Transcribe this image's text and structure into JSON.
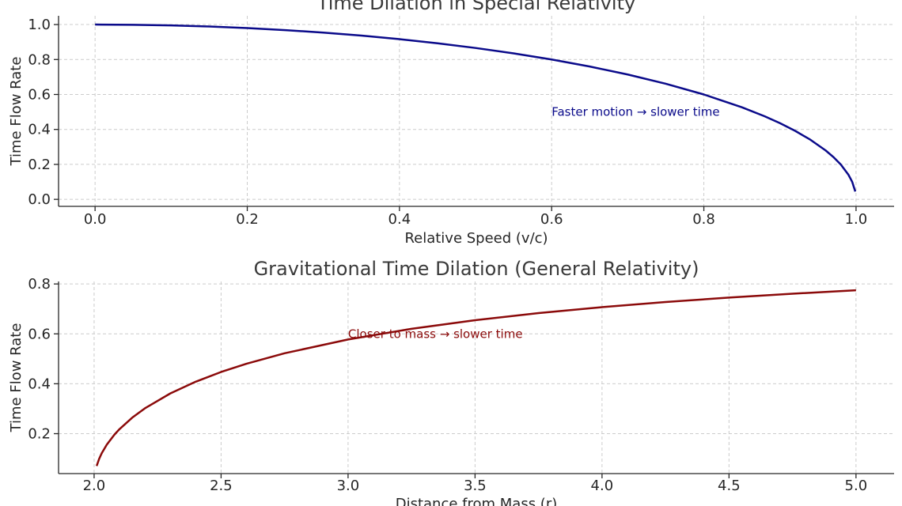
{
  "chart_data": [
    {
      "type": "line",
      "title": "Time Dilation in Special Relativity",
      "xlabel": "Relative Speed (v/c)",
      "ylabel": "Time Flow Rate",
      "xlim": [
        -0.048,
        1.05
      ],
      "ylim": [
        -0.04,
        1.05
      ],
      "xticks": [
        0.0,
        0.2,
        0.4,
        0.6,
        0.8,
        1.0
      ],
      "xtick_labels": [
        "0.0",
        "0.2",
        "0.4",
        "0.6",
        "0.8",
        "1.0"
      ],
      "yticks": [
        0.0,
        0.2,
        0.4,
        0.6,
        0.8,
        1.0
      ],
      "ytick_labels": [
        "0.0",
        "0.2",
        "0.4",
        "0.6",
        "0.8",
        "1.0"
      ],
      "grid": true,
      "series": [
        {
          "color": "#0a0a8a",
          "x": [
            0.0,
            0.05,
            0.1,
            0.15,
            0.2,
            0.25,
            0.3,
            0.35,
            0.4,
            0.45,
            0.5,
            0.55,
            0.6,
            0.65,
            0.7,
            0.75,
            0.8,
            0.85,
            0.88,
            0.9,
            0.92,
            0.94,
            0.96,
            0.97,
            0.98,
            0.99,
            0.995,
            0.999
          ],
          "y": [
            1.0,
            0.9987,
            0.995,
            0.9887,
            0.9798,
            0.9682,
            0.9539,
            0.9367,
            0.9165,
            0.893,
            0.866,
            0.8352,
            0.8,
            0.7599,
            0.7141,
            0.6614,
            0.6,
            0.5268,
            0.475,
            0.4359,
            0.3919,
            0.3412,
            0.28,
            0.2431,
            0.199,
            0.141,
            0.0999,
            0.0447
          ]
        }
      ],
      "annotations": [
        {
          "text": "Faster motion → slower time",
          "x": 0.6,
          "y": 0.5,
          "color": "#0a0a8a"
        }
      ]
    },
    {
      "type": "line",
      "title": "Gravitational Time Dilation (General Relativity)",
      "xlabel": "Distance from Mass (r)",
      "ylabel": "Time Flow Rate",
      "xlim": [
        1.86,
        5.15
      ],
      "ylim": [
        0.04,
        0.81
      ],
      "xticks": [
        2.0,
        2.5,
        3.0,
        3.5,
        4.0,
        4.5,
        5.0
      ],
      "xtick_labels": [
        "2.0",
        "2.5",
        "3.0",
        "3.5",
        "4.0",
        "4.5",
        "5.0"
      ],
      "yticks": [
        0.2,
        0.4,
        0.6,
        0.8
      ],
      "ytick_labels": [
        "0.2",
        "0.4",
        "0.6",
        "0.8"
      ],
      "grid": true,
      "series": [
        {
          "color": "#8b0a0a",
          "x": [
            2.01,
            2.02,
            2.03,
            2.05,
            2.08,
            2.1,
            2.15,
            2.2,
            2.3,
            2.4,
            2.5,
            2.6,
            2.75,
            3.0,
            3.25,
            3.5,
            3.75,
            4.0,
            4.25,
            4.5,
            4.75,
            5.0
          ],
          "y": [
            0.0705,
            0.0995,
            0.1216,
            0.1562,
            0.1961,
            0.2182,
            0.2641,
            0.3015,
            0.3612,
            0.4082,
            0.4472,
            0.4804,
            0.5222,
            0.5774,
            0.6202,
            0.6547,
            0.6831,
            0.7071,
            0.7276,
            0.7454,
            0.761,
            0.7746
          ]
        }
      ],
      "annotations": [
        {
          "text": "Closer to mass → slower time",
          "x": 3.0,
          "y": 0.6,
          "color": "#8b0a0a"
        }
      ]
    }
  ]
}
